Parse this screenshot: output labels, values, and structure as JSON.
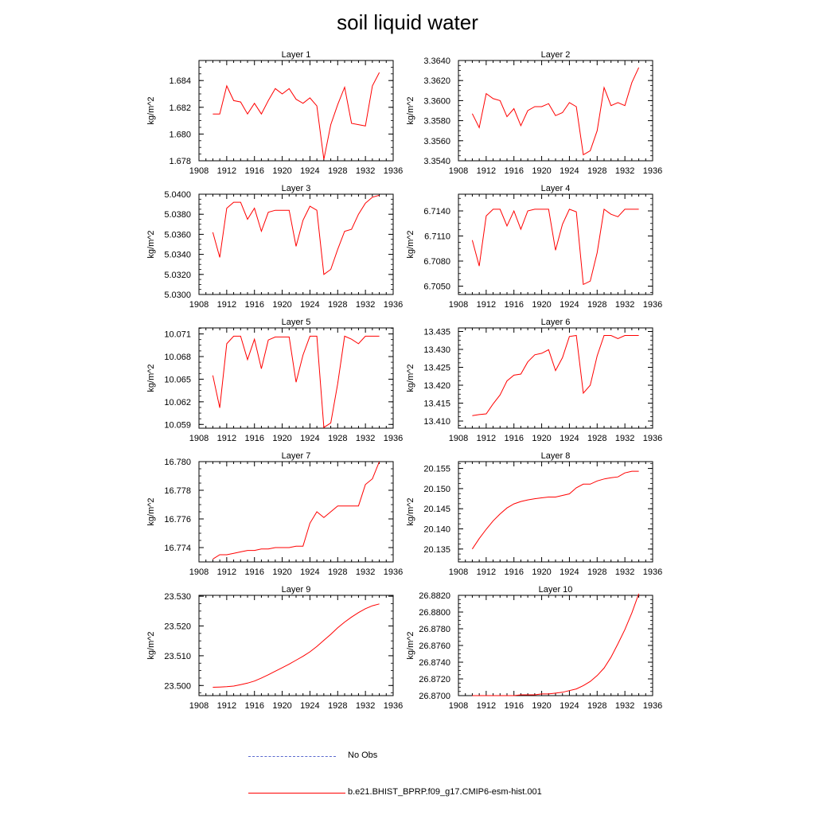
{
  "title": "soil liquid water",
  "legend": {
    "items": [
      {
        "label": "No Obs",
        "color": "#5a6acf",
        "style": "dashed"
      },
      {
        "label": "b.e21.BHIST_BPRP.f09_g17.CMIP6-esm-hist.001",
        "color": "#ff0000",
        "style": "solid"
      }
    ]
  },
  "chart_data": [
    {
      "type": "line",
      "title": "Layer 1",
      "ylabel": "kg/m^2",
      "xlim": [
        1908,
        1936
      ],
      "xticks": [
        1908,
        1912,
        1916,
        1920,
        1924,
        1928,
        1932,
        1936
      ],
      "ylim": [
        1.678,
        1.6855
      ],
      "yticks": [
        1.678,
        1.68,
        1.682,
        1.684
      ],
      "ytick_labels": [
        "1.678",
        "1.680",
        "1.682",
        "1.684"
      ],
      "series": [
        {
          "color": "#ff0000",
          "x": [
            1910,
            1911,
            1912,
            1913,
            1914,
            1915,
            1916,
            1917,
            1918,
            1919,
            1920,
            1921,
            1922,
            1923,
            1924,
            1925,
            1926,
            1927,
            1928,
            1929,
            1930,
            1931,
            1932,
            1933,
            1934
          ],
          "y": [
            1.6815,
            1.6815,
            1.6836,
            1.6825,
            1.6824,
            1.6815,
            1.6823,
            1.6815,
            1.6825,
            1.6834,
            1.683,
            1.6834,
            1.6826,
            1.6823,
            1.6827,
            1.6821,
            1.6781,
            1.6807,
            1.6822,
            1.6835,
            1.6808,
            1.6807,
            1.6806,
            1.6836,
            1.6846
          ]
        }
      ]
    },
    {
      "type": "line",
      "title": "Layer 2",
      "ylabel": "kg/m^2",
      "xlim": [
        1908,
        1936
      ],
      "xticks": [
        1908,
        1912,
        1916,
        1920,
        1924,
        1928,
        1932,
        1936
      ],
      "ylim": [
        3.354,
        3.364
      ],
      "yticks": [
        3.354,
        3.356,
        3.358,
        3.36,
        3.362,
        3.364
      ],
      "ytick_labels": [
        "3.3540",
        "3.3560",
        "3.3580",
        "3.3600",
        "3.3620",
        "3.3640"
      ],
      "series": [
        {
          "color": "#ff0000",
          "x": [
            1910,
            1911,
            1912,
            1913,
            1914,
            1915,
            1916,
            1917,
            1918,
            1919,
            1920,
            1921,
            1922,
            1923,
            1924,
            1925,
            1926,
            1927,
            1928,
            1929,
            1930,
            1931,
            1932,
            1933,
            1934
          ],
          "y": [
            3.3587,
            3.3573,
            3.3607,
            3.3602,
            3.36,
            3.3584,
            3.3592,
            3.3575,
            3.359,
            3.3594,
            3.3594,
            3.3597,
            3.3585,
            3.3588,
            3.3598,
            3.3594,
            3.3546,
            3.355,
            3.357,
            3.3613,
            3.3595,
            3.3598,
            3.3595,
            3.3618,
            3.3633
          ]
        }
      ]
    },
    {
      "type": "line",
      "title": "Layer 3",
      "ylabel": "kg/m^2",
      "xlim": [
        1908,
        1936
      ],
      "xticks": [
        1908,
        1912,
        1916,
        1920,
        1924,
        1928,
        1932,
        1936
      ],
      "ylim": [
        5.03,
        5.04
      ],
      "yticks": [
        5.03,
        5.032,
        5.034,
        5.036,
        5.038,
        5.04
      ],
      "ytick_labels": [
        "5.0300",
        "5.0320",
        "5.0340",
        "5.0360",
        "5.0380",
        "5.0400"
      ],
      "series": [
        {
          "color": "#ff0000",
          "x": [
            1910,
            1911,
            1912,
            1913,
            1914,
            1915,
            1916,
            1917,
            1918,
            1919,
            1920,
            1921,
            1922,
            1923,
            1924,
            1925,
            1926,
            1927,
            1928,
            1929,
            1930,
            1931,
            1932,
            1933,
            1934
          ],
          "y": [
            5.0362,
            5.0337,
            5.0386,
            5.0392,
            5.0392,
            5.0375,
            5.0386,
            5.0363,
            5.0382,
            5.0384,
            5.0384,
            5.0384,
            5.0348,
            5.0374,
            5.0388,
            5.0384,
            5.032,
            5.0325,
            5.0345,
            5.0363,
            5.0365,
            5.038,
            5.0391,
            5.0397,
            5.0399
          ]
        }
      ]
    },
    {
      "type": "line",
      "title": "Layer 4",
      "ylabel": "kg/m^2",
      "xlim": [
        1908,
        1936
      ],
      "xticks": [
        1908,
        1912,
        1916,
        1920,
        1924,
        1928,
        1932,
        1936
      ],
      "ylim": [
        6.704,
        6.716
      ],
      "yticks": [
        6.705,
        6.708,
        6.711,
        6.714
      ],
      "ytick_labels": [
        "6.7050",
        "6.7080",
        "6.7110",
        "6.7140"
      ],
      "series": [
        {
          "color": "#ff0000",
          "x": [
            1910,
            1911,
            1912,
            1913,
            1914,
            1915,
            1916,
            1917,
            1918,
            1919,
            1920,
            1921,
            1922,
            1923,
            1924,
            1925,
            1926,
            1927,
            1928,
            1929,
            1930,
            1931,
            1932,
            1933,
            1934
          ],
          "y": [
            6.7105,
            6.7074,
            6.7134,
            6.7142,
            6.7142,
            6.7122,
            6.714,
            6.7118,
            6.714,
            6.7142,
            6.7142,
            6.7142,
            6.7093,
            6.7124,
            6.7142,
            6.7139,
            6.7052,
            6.7056,
            6.709,
            6.7142,
            6.7136,
            6.7133,
            6.7142,
            6.7142,
            6.7142
          ]
        }
      ]
    },
    {
      "type": "line",
      "title": "Layer 5",
      "ylabel": "kg/m^2",
      "xlim": [
        1908,
        1936
      ],
      "xticks": [
        1908,
        1912,
        1916,
        1920,
        1924,
        1928,
        1932,
        1936
      ],
      "ylim": [
        10.0585,
        10.0718
      ],
      "yticks": [
        10.059,
        10.062,
        10.065,
        10.068,
        10.071
      ],
      "ytick_labels": [
        "10.059",
        "10.062",
        "10.065",
        "10.068",
        "10.071"
      ],
      "series": [
        {
          "color": "#ff0000",
          "x": [
            1910,
            1911,
            1912,
            1913,
            1914,
            1915,
            1916,
            1917,
            1918,
            1919,
            1920,
            1921,
            1922,
            1923,
            1924,
            1925,
            1926,
            1927,
            1928,
            1929,
            1930,
            1931,
            1932,
            1933,
            1934
          ],
          "y": [
            10.0655,
            10.0612,
            10.0697,
            10.0707,
            10.0707,
            10.0676,
            10.0703,
            10.0664,
            10.0702,
            10.0706,
            10.0706,
            10.0706,
            10.0646,
            10.0682,
            10.0707,
            10.0707,
            10.0586,
            10.0592,
            10.0644,
            10.0707,
            10.0703,
            10.0697,
            10.0707,
            10.0707,
            10.0707
          ]
        }
      ]
    },
    {
      "type": "line",
      "title": "Layer 6",
      "ylabel": "kg/m^2",
      "xlim": [
        1908,
        1936
      ],
      "xticks": [
        1908,
        1912,
        1916,
        1920,
        1924,
        1928,
        1932,
        1936
      ],
      "ylim": [
        13.408,
        13.436
      ],
      "yticks": [
        13.41,
        13.415,
        13.42,
        13.425,
        13.43,
        13.435
      ],
      "ytick_labels": [
        "13.410",
        "13.415",
        "13.420",
        "13.425",
        "13.430",
        "13.435"
      ],
      "series": [
        {
          "color": "#ff0000",
          "x": [
            1910,
            1911,
            1912,
            1913,
            1914,
            1915,
            1916,
            1917,
            1918,
            1919,
            1920,
            1921,
            1922,
            1923,
            1924,
            1925,
            1926,
            1927,
            1928,
            1929,
            1930,
            1931,
            1932,
            1933,
            1934
          ],
          "y": [
            13.4115,
            13.4118,
            13.412,
            13.4148,
            13.4173,
            13.4212,
            13.4228,
            13.4231,
            13.4265,
            13.4285,
            13.4289,
            13.4299,
            13.4241,
            13.4277,
            13.4336,
            13.4339,
            13.4178,
            13.42,
            13.4282,
            13.4339,
            13.4339,
            13.433,
            13.4339,
            13.4339,
            13.4339
          ]
        }
      ]
    },
    {
      "type": "line",
      "title": "Layer 7",
      "ylabel": "kg/m^2",
      "xlim": [
        1908,
        1936
      ],
      "xticks": [
        1908,
        1912,
        1916,
        1920,
        1924,
        1928,
        1932,
        1936
      ],
      "ylim": [
        16.773,
        16.78
      ],
      "yticks": [
        16.774,
        16.776,
        16.778,
        16.78
      ],
      "ytick_labels": [
        "16.774",
        "16.776",
        "16.778",
        "16.780"
      ],
      "series": [
        {
          "color": "#ff0000",
          "x": [
            1910,
            1911,
            1912,
            1913,
            1914,
            1915,
            1916,
            1917,
            1918,
            1919,
            1920,
            1921,
            1922,
            1923,
            1924,
            1925,
            1926,
            1927,
            1928,
            1929,
            1930,
            1931,
            1932,
            1933,
            1934
          ],
          "y": [
            16.7732,
            16.7735,
            16.7735,
            16.7736,
            16.7737,
            16.7738,
            16.7738,
            16.7739,
            16.7739,
            16.774,
            16.774,
            16.774,
            16.7741,
            16.7741,
            16.7757,
            16.7765,
            16.7761,
            16.7765,
            16.7769,
            16.7769,
            16.7769,
            16.7769,
            16.7784,
            16.7788,
            16.78
          ]
        }
      ]
    },
    {
      "type": "line",
      "title": "Layer 8",
      "ylabel": "kg/m^2",
      "xlim": [
        1908,
        1936
      ],
      "xticks": [
        1908,
        1912,
        1916,
        1920,
        1924,
        1928,
        1932,
        1936
      ],
      "ylim": [
        20.1318,
        20.1567
      ],
      "yticks": [
        20.135,
        20.14,
        20.145,
        20.15,
        20.155
      ],
      "ytick_labels": [
        "20.135",
        "20.140",
        "20.145",
        "20.150",
        "20.155"
      ],
      "series": [
        {
          "color": "#ff0000",
          "x": [
            1910,
            1911,
            1912,
            1913,
            1914,
            1915,
            1916,
            1917,
            1918,
            1919,
            1920,
            1921,
            1922,
            1923,
            1924,
            1925,
            1926,
            1927,
            1928,
            1929,
            1930,
            1931,
            1932,
            1933,
            1934
          ],
          "y": [
            20.135,
            20.1376,
            20.1399,
            20.142,
            20.1437,
            20.1452,
            20.1462,
            20.1468,
            20.1472,
            20.1475,
            20.1477,
            20.1479,
            20.1479,
            20.1483,
            20.1487,
            20.1502,
            20.1511,
            20.1511,
            20.1519,
            20.1524,
            20.1527,
            20.1529,
            20.1539,
            20.1543,
            20.1543
          ]
        }
      ]
    },
    {
      "type": "line",
      "title": "Layer 9",
      "ylabel": "kg/m^2",
      "xlim": [
        1908,
        1936
      ],
      "xticks": [
        1908,
        1912,
        1916,
        1920,
        1924,
        1928,
        1932,
        1936
      ],
      "ylim": [
        23.4966,
        23.5303
      ],
      "yticks": [
        23.5,
        23.51,
        23.52,
        23.53
      ],
      "ytick_labels": [
        "23.500",
        "23.510",
        "23.520",
        "23.530"
      ],
      "series": [
        {
          "color": "#ff0000",
          "x": [
            1910,
            1911,
            1912,
            1913,
            1914,
            1915,
            1916,
            1917,
            1918,
            1919,
            1920,
            1921,
            1922,
            1923,
            1924,
            1925,
            1926,
            1927,
            1928,
            1929,
            1930,
            1931,
            1932,
            1933,
            1934
          ],
          "y": [
            23.4994,
            23.4995,
            23.4996,
            23.4998,
            23.5003,
            23.5008,
            23.5015,
            23.5025,
            23.5036,
            23.5048,
            23.506,
            23.5072,
            23.5085,
            23.5098,
            23.5113,
            23.5131,
            23.5152,
            23.5172,
            23.5194,
            23.5213,
            23.523,
            23.5245,
            23.5258,
            23.5268,
            23.5274
          ]
        }
      ]
    },
    {
      "type": "line",
      "title": "Layer 10",
      "ylabel": "kg/m^2",
      "xlim": [
        1908,
        1936
      ],
      "xticks": [
        1908,
        1912,
        1916,
        1920,
        1924,
        1928,
        1932,
        1936
      ],
      "ylim": [
        26.87,
        26.882
      ],
      "yticks": [
        26.87,
        26.872,
        26.874,
        26.876,
        26.878,
        26.88,
        26.882
      ],
      "ytick_labels": [
        "26.8700",
        "26.8720",
        "26.8740",
        "26.8760",
        "26.8780",
        "26.8800",
        "26.8820"
      ],
      "series": [
        {
          "color": "#ff0000",
          "x": [
            1910,
            1911,
            1912,
            1913,
            1914,
            1915,
            1916,
            1917,
            1918,
            1919,
            1920,
            1921,
            1922,
            1923,
            1924,
            1925,
            1926,
            1927,
            1928,
            1929,
            1930,
            1931,
            1932,
            1933,
            1934
          ],
          "y": [
            26.87,
            26.87,
            26.87,
            26.87,
            26.87,
            26.87,
            26.87,
            26.8701,
            26.8701,
            26.8701,
            26.8702,
            26.8702,
            26.8703,
            26.8704,
            26.8706,
            26.8708,
            26.8712,
            26.8717,
            26.8724,
            26.8733,
            26.8746,
            26.8762,
            26.8779,
            26.8799,
            26.8822
          ]
        }
      ]
    }
  ]
}
